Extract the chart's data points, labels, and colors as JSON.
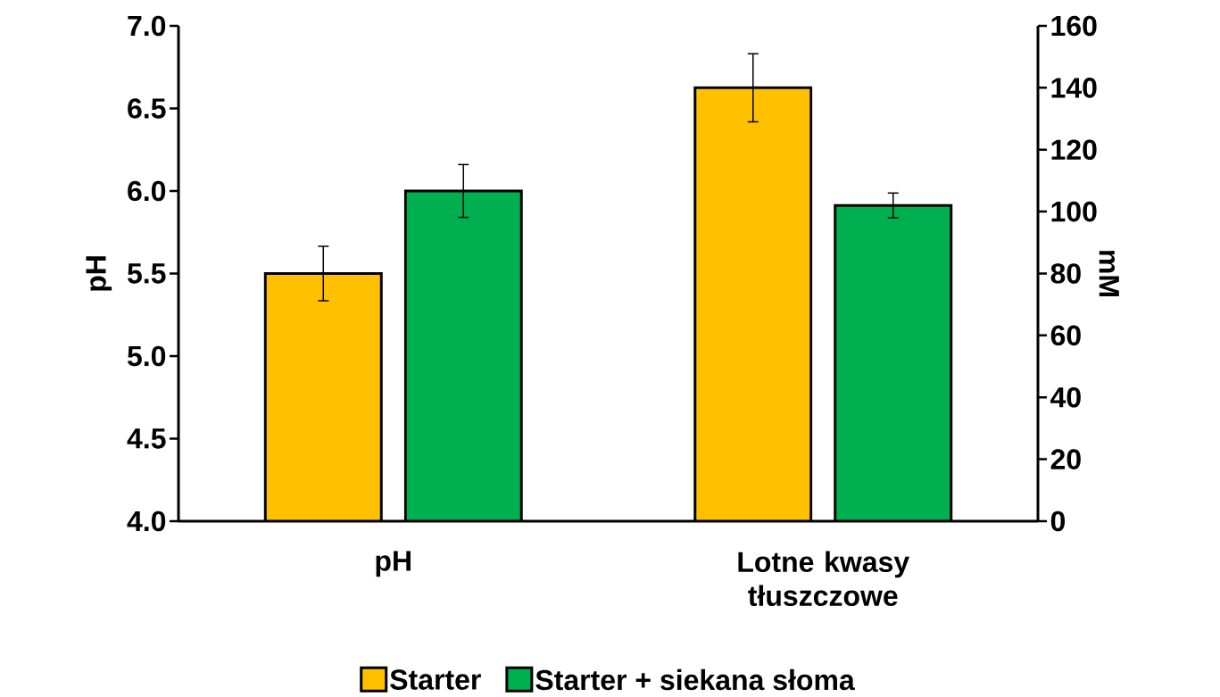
{
  "chart_data": {
    "type": "bar",
    "categories": [
      "pH",
      "Lotne kwasy tłuszczowe"
    ],
    "series": [
      {
        "name": "Starter",
        "color": "#ffc000",
        "values": [
          5.5,
          null
        ],
        "errors": [
          0.165,
          null
        ]
      },
      {
        "name": "Starter + siekana słoma",
        "color": "#00b050",
        "values": [
          6.0,
          null
        ],
        "errors": [
          0.16,
          null
        ]
      },
      {
        "color": "#ffc000",
        "axis": "y2",
        "values": [
          null,
          140
        ],
        "errors": [
          null,
          11
        ]
      },
      {
        "color": "#00b050",
        "axis": "y2",
        "values": [
          null,
          102
        ],
        "errors": [
          null,
          4
        ]
      }
    ],
    "ylabel": "pH",
    "y2label": "mM",
    "ylim": [
      4,
      7
    ],
    "yticks": [
      {
        "value": 4,
        "label": "4.0"
      },
      {
        "value": 4.5,
        "label": "4.5"
      },
      {
        "value": 5,
        "label": "5.0"
      },
      {
        "value": 5.5,
        "label": "5.5"
      },
      {
        "value": 6,
        "label": "6.0"
      },
      {
        "value": 6.5,
        "label": "6.5"
      },
      {
        "value": 7,
        "label": "7.0"
      }
    ],
    "y2lim": [
      0,
      160
    ],
    "y2ticks": [
      0,
      20,
      40,
      60,
      80,
      100,
      120,
      140,
      160
    ],
    "legend": "bottom"
  }
}
